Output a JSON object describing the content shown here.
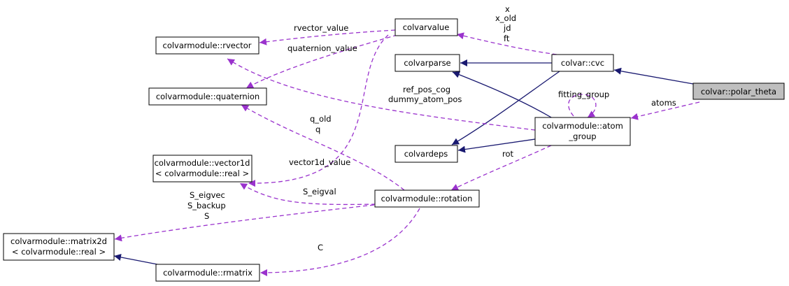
{
  "diagram": {
    "nodes": {
      "polar_theta": "colvar::polar_theta",
      "cvc": "colvar::cvc",
      "colvarvalue": "colvarvalue",
      "colvarparse": "colvarparse",
      "colvardeps": "colvardeps",
      "atom_group_l1": "colvarmodule::atom",
      "atom_group_l2": "_group",
      "rvector": "colvarmodule::rvector",
      "quaternion": "colvarmodule::quaternion",
      "vector1d_l1": "colvarmodule::vector1d",
      "vector1d_l2": "< colvarmodule::real >",
      "rotation": "colvarmodule::rotation",
      "matrix2d_l1": "colvarmodule::matrix2d",
      "matrix2d_l2": "< colvarmodule::real >",
      "rmatrix": "colvarmodule::rmatrix"
    },
    "edge_labels": {
      "atoms": "atoms",
      "fitting_group": "fitting_group",
      "x": "x",
      "x_old": "x_old",
      "jd": "jd",
      "ft": "ft",
      "rvector_value": "rvector_value",
      "quaternion_value": "quaternion_value",
      "ref_pos_cog": "ref_pos_cog",
      "dummy_atom_pos": "dummy_atom_pos",
      "q_old": "q_old",
      "q": "q",
      "vector1d_value": "vector1d_value",
      "rot": "rot",
      "S_eigval": "S_eigval",
      "S_eigvec": "S_eigvec",
      "S_backup": "S_backup",
      "S": "S",
      "C": "C"
    },
    "colors": {
      "inheritance": "#191970",
      "usage": "#9a32cd",
      "highlight_fill": "#bfbfbf"
    }
  }
}
